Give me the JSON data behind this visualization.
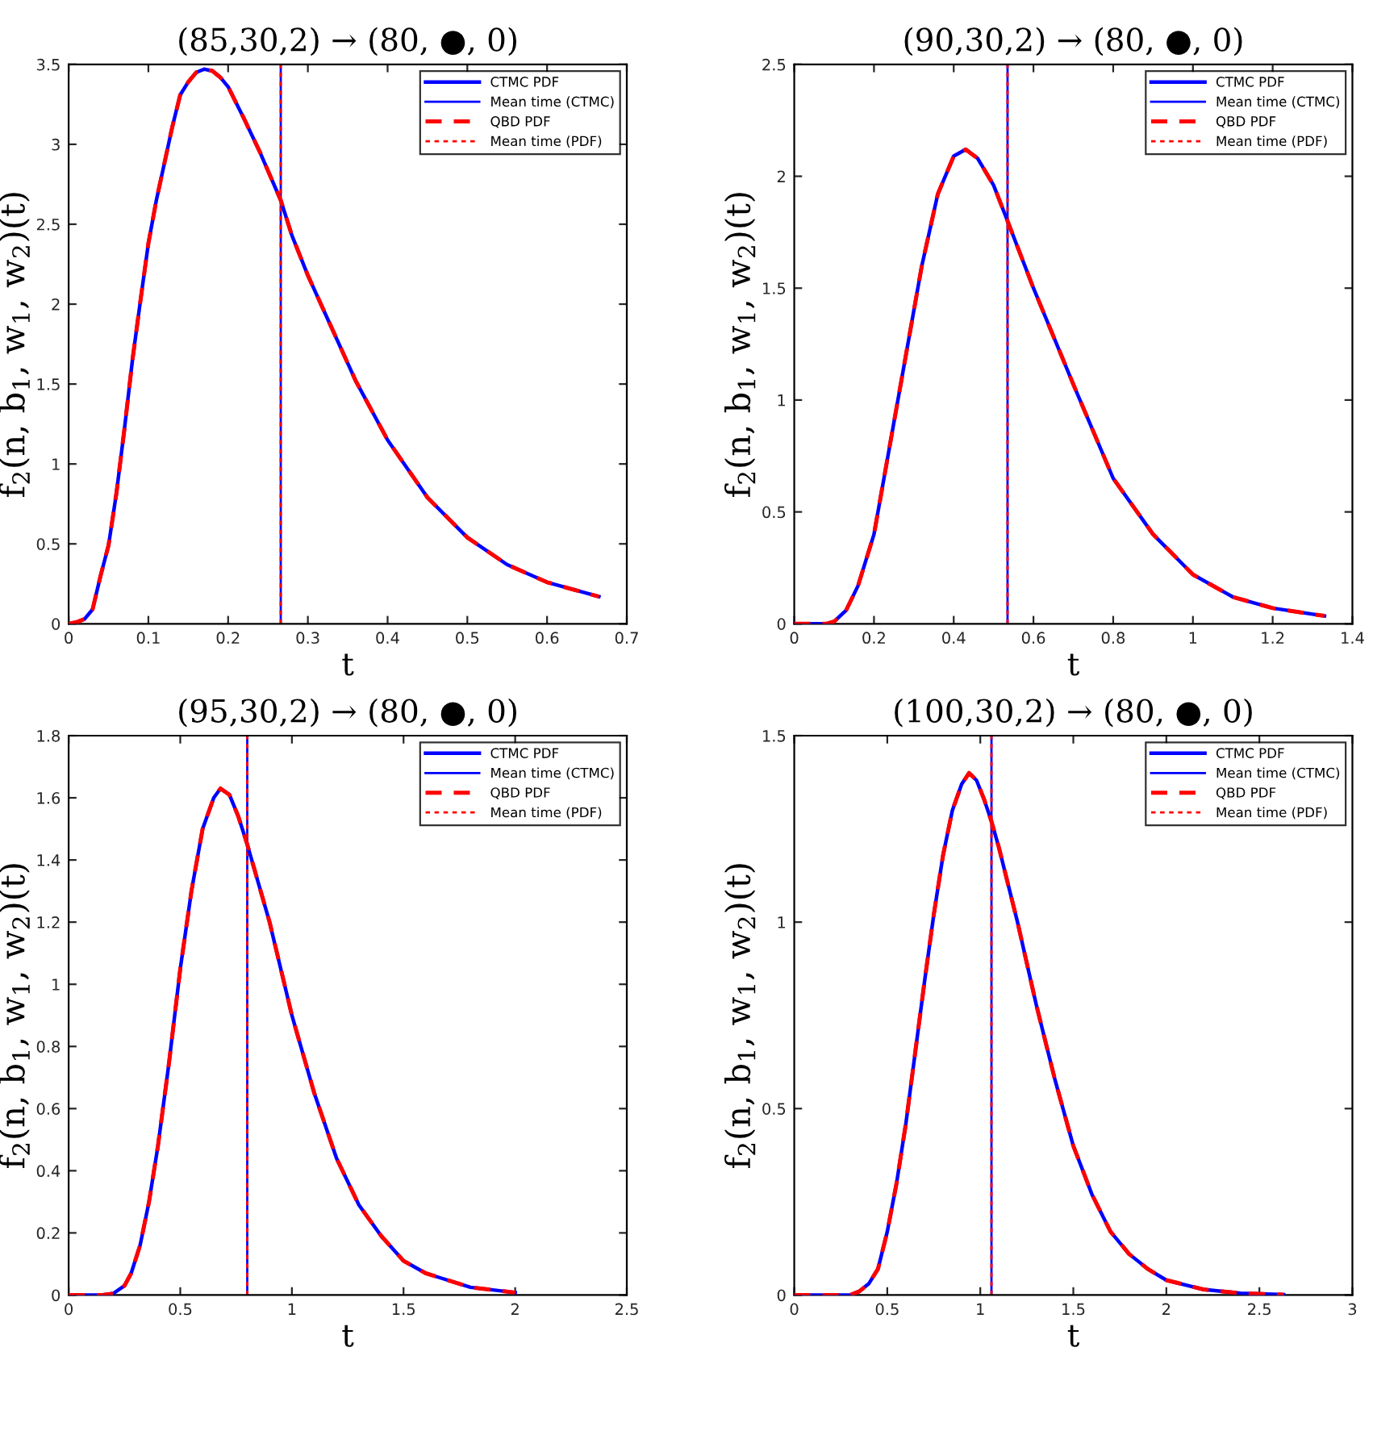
{
  "chart_data": [
    {
      "type": "line",
      "title": "(85,30,2) → (80, ●, 0)",
      "xlabel": "t",
      "ylabel": "f$_{2}$(n, b$_{1}$, w$_{1}$, w$_{2}$)(t)",
      "xlim": [
        0,
        0.7
      ],
      "ylim": [
        0,
        3.5
      ],
      "xticks": [
        0,
        0.1,
        0.2,
        0.3,
        0.4,
        0.5,
        0.6,
        0.7
      ],
      "yticks": [
        0,
        0.5,
        1,
        1.5,
        2,
        2.5,
        3,
        3.5
      ],
      "legend": "top right",
      "grid": false,
      "x": [
        0,
        0.01,
        0.02,
        0.03,
        0.04,
        0.05,
        0.06,
        0.07,
        0.08,
        0.09,
        0.1,
        0.11,
        0.12,
        0.13,
        0.14,
        0.15,
        0.16,
        0.17,
        0.18,
        0.19,
        0.2,
        0.22,
        0.24,
        0.266,
        0.28,
        0.3,
        0.33,
        0.36,
        0.4,
        0.45,
        0.5,
        0.55,
        0.6,
        0.665
      ],
      "series": [
        {
          "name": "CTMC PDF",
          "color": "#0000ff",
          "line_style": "solid",
          "values": [
            0,
            0.01,
            0.03,
            0.09,
            0.3,
            0.49,
            0.82,
            1.22,
            1.65,
            2.02,
            2.38,
            2.65,
            2.88,
            3.11,
            3.31,
            3.39,
            3.45,
            3.47,
            3.46,
            3.42,
            3.36,
            3.16,
            2.95,
            2.65,
            2.43,
            2.18,
            1.85,
            1.52,
            1.15,
            0.79,
            0.54,
            0.37,
            0.26,
            0.17
          ]
        },
        {
          "name": "Mean time (CTMC)",
          "color": "#0000ff",
          "line_style": "solid",
          "x": [
            0.266,
            0.266
          ],
          "values": [
            0,
            3.5
          ]
        },
        {
          "name": "QBD PDF",
          "color": "#ff0000",
          "line_style": "dashed",
          "values": [
            0,
            0.01,
            0.03,
            0.09,
            0.3,
            0.49,
            0.82,
            1.22,
            1.65,
            2.02,
            2.38,
            2.65,
            2.88,
            3.11,
            3.31,
            3.39,
            3.45,
            3.47,
            3.46,
            3.42,
            3.36,
            3.16,
            2.95,
            2.65,
            2.43,
            2.18,
            1.85,
            1.52,
            1.15,
            0.79,
            0.54,
            0.37,
            0.26,
            0.17
          ]
        },
        {
          "name": "Mean time (PDF)",
          "color": "#ff0000",
          "line_style": "dotted",
          "x": [
            0.266,
            0.266
          ],
          "values": [
            0,
            3.5
          ]
        }
      ]
    },
    {
      "type": "line",
      "title": "(90,30,2) → (80, ●, 0)",
      "xlabel": "t",
      "ylabel": "f$_{2}$(n, b$_{1}$, w$_{1}$, w$_{2}$)(t)",
      "xlim": [
        0,
        1.4
      ],
      "ylim": [
        0,
        2.5
      ],
      "xticks": [
        0,
        0.2,
        0.4,
        0.6,
        0.8,
        1,
        1.2,
        1.4
      ],
      "yticks": [
        0,
        0.5,
        1,
        1.5,
        2,
        2.5
      ],
      "legend": "top right",
      "grid": false,
      "x": [
        0,
        0.08,
        0.1,
        0.13,
        0.16,
        0.2,
        0.24,
        0.28,
        0.32,
        0.36,
        0.4,
        0.43,
        0.46,
        0.5,
        0.535,
        0.6,
        0.7,
        0.8,
        0.9,
        1.0,
        1.1,
        1.2,
        1.33
      ],
      "series": [
        {
          "name": "CTMC PDF",
          "color": "#0000ff",
          "line_style": "solid",
          "values": [
            0,
            0,
            0.01,
            0.06,
            0.17,
            0.4,
            0.8,
            1.2,
            1.6,
            1.92,
            2.09,
            2.12,
            2.08,
            1.96,
            1.8,
            1.5,
            1.07,
            0.65,
            0.4,
            0.22,
            0.12,
            0.07,
            0.035
          ]
        },
        {
          "name": "Mean time (CTMC)",
          "color": "#0000ff",
          "line_style": "solid",
          "x": [
            0.535,
            0.535
          ],
          "values": [
            0,
            2.5
          ]
        },
        {
          "name": "QBD PDF",
          "color": "#ff0000",
          "line_style": "dashed",
          "values": [
            0,
            0,
            0.01,
            0.06,
            0.17,
            0.4,
            0.8,
            1.2,
            1.6,
            1.92,
            2.09,
            2.12,
            2.08,
            1.96,
            1.8,
            1.5,
            1.07,
            0.65,
            0.4,
            0.22,
            0.12,
            0.07,
            0.035
          ]
        },
        {
          "name": "Mean time (PDF)",
          "color": "#ff0000",
          "line_style": "dotted",
          "x": [
            0.535,
            0.535
          ],
          "values": [
            0,
            2.5
          ]
        }
      ]
    },
    {
      "type": "line",
      "title": "(95,30,2) → (80, ●, 0)",
      "xlabel": "t",
      "ylabel": "f$_{2}$(n, b$_{1}$, w$_{1}$, w$_{2}$)(t)",
      "xlim": [
        0,
        2.5
      ],
      "ylim": [
        0,
        1.8
      ],
      "xticks": [
        0,
        0.5,
        1,
        1.5,
        2,
        2.5
      ],
      "yticks": [
        0,
        0.2,
        0.4,
        0.6,
        0.8,
        1,
        1.2,
        1.4,
        1.6,
        1.8
      ],
      "legend": "top right",
      "grid": false,
      "x": [
        0,
        0.15,
        0.2,
        0.25,
        0.28,
        0.32,
        0.36,
        0.4,
        0.45,
        0.5,
        0.55,
        0.6,
        0.65,
        0.68,
        0.72,
        0.76,
        0.8,
        0.9,
        1.0,
        1.1,
        1.2,
        1.3,
        1.4,
        1.5,
        1.6,
        1.8,
        2.0
      ],
      "series": [
        {
          "name": "CTMC PDF",
          "color": "#0000ff",
          "line_style": "solid",
          "values": [
            0,
            0,
            0.005,
            0.03,
            0.07,
            0.16,
            0.3,
            0.48,
            0.75,
            1.05,
            1.3,
            1.5,
            1.6,
            1.63,
            1.61,
            1.54,
            1.45,
            1.2,
            0.9,
            0.65,
            0.44,
            0.29,
            0.19,
            0.11,
            0.07,
            0.025,
            0.008
          ]
        },
        {
          "name": "Mean time (CTMC)",
          "color": "#0000ff",
          "line_style": "solid",
          "x": [
            0.8,
            0.8
          ],
          "values": [
            0,
            1.8
          ]
        },
        {
          "name": "QBD PDF",
          "color": "#ff0000",
          "line_style": "dashed",
          "values": [
            0,
            0,
            0.005,
            0.03,
            0.07,
            0.16,
            0.3,
            0.48,
            0.75,
            1.05,
            1.3,
            1.5,
            1.6,
            1.63,
            1.61,
            1.54,
            1.45,
            1.2,
            0.9,
            0.65,
            0.44,
            0.29,
            0.19,
            0.11,
            0.07,
            0.025,
            0.008
          ]
        },
        {
          "name": "Mean time (PDF)",
          "color": "#ff0000",
          "line_style": "dotted",
          "x": [
            0.8,
            0.8
          ],
          "values": [
            0,
            1.8
          ]
        }
      ]
    },
    {
      "type": "line",
      "title": "(100,30,2) → (80, ●, 0)",
      "xlabel": "t",
      "ylabel": "f$_{2}$(n, b$_{1}$, w$_{1}$, w$_{2}$)(t)",
      "xlim": [
        0,
        3
      ],
      "ylim": [
        0,
        1.5
      ],
      "xticks": [
        0,
        0.5,
        1,
        1.5,
        2,
        2.5,
        3
      ],
      "yticks": [
        0,
        0.5,
        1,
        1.5
      ],
      "legend": "top right",
      "grid": false,
      "x": [
        0,
        0.3,
        0.35,
        0.4,
        0.45,
        0.5,
        0.55,
        0.6,
        0.65,
        0.7,
        0.75,
        0.8,
        0.85,
        0.9,
        0.94,
        0.98,
        1.02,
        1.06,
        1.1,
        1.2,
        1.3,
        1.4,
        1.5,
        1.6,
        1.7,
        1.8,
        1.9,
        2.0,
        2.2,
        2.4,
        2.63
      ],
      "series": [
        {
          "name": "CTMC PDF",
          "color": "#0000ff",
          "line_style": "solid",
          "values": [
            0,
            0,
            0.01,
            0.03,
            0.07,
            0.17,
            0.3,
            0.46,
            0.65,
            0.84,
            1.02,
            1.18,
            1.3,
            1.37,
            1.4,
            1.38,
            1.33,
            1.27,
            1.2,
            1.0,
            0.78,
            0.58,
            0.4,
            0.27,
            0.17,
            0.11,
            0.07,
            0.04,
            0.015,
            0.005,
            0.001
          ]
        },
        {
          "name": "Mean time (CTMC)",
          "color": "#0000ff",
          "line_style": "solid",
          "x": [
            1.06,
            1.06
          ],
          "values": [
            0,
            1.5
          ]
        },
        {
          "name": "QBD PDF",
          "color": "#ff0000",
          "line_style": "dashed",
          "values": [
            0,
            0,
            0.01,
            0.03,
            0.07,
            0.17,
            0.3,
            0.46,
            0.65,
            0.84,
            1.02,
            1.18,
            1.3,
            1.37,
            1.4,
            1.38,
            1.33,
            1.27,
            1.2,
            1.0,
            0.78,
            0.58,
            0.4,
            0.27,
            0.17,
            0.11,
            0.07,
            0.04,
            0.015,
            0.005,
            0.001
          ]
        },
        {
          "name": "Mean time (PDF)",
          "color": "#ff0000",
          "line_style": "dotted",
          "x": [
            1.06,
            1.06
          ],
          "values": [
            0,
            1.5
          ]
        }
      ]
    }
  ]
}
